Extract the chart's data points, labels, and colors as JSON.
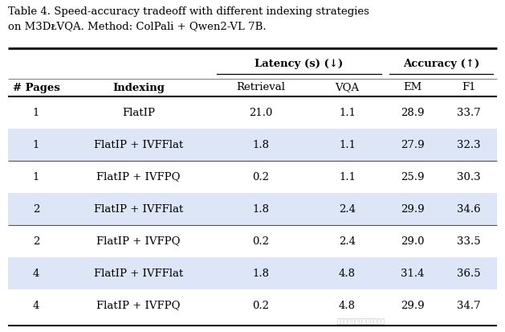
{
  "title_line1": "Table 4. Speed-accuracy tradeoff with different indexing strategies",
  "title_line2": "on M3DocVQA. Method: ColPali + Qwen2-VL 7B.",
  "rows": [
    {
      "pages": "1",
      "indexing": "FlatIP",
      "retrieval": "21.0",
      "vqa": "1.1",
      "em": "28.9",
      "f1": "33.7",
      "bg": "#ffffff"
    },
    {
      "pages": "1",
      "indexing": "FlatIP + IVFFlat",
      "retrieval": "1.8",
      "vqa": "1.1",
      "em": "27.9",
      "f1": "32.3",
      "bg": "#dce6f7"
    },
    {
      "pages": "1",
      "indexing": "FlatIP + IVFPQ",
      "retrieval": "0.2",
      "vqa": "1.1",
      "em": "25.9",
      "f1": "30.3",
      "bg": "#ffffff"
    },
    {
      "pages": "2",
      "indexing": "FlatIP + IVFFlat",
      "retrieval": "1.8",
      "vqa": "2.4",
      "em": "29.9",
      "f1": "34.6",
      "bg": "#dce6f7"
    },
    {
      "pages": "2",
      "indexing": "FlatIP + IVFPQ",
      "retrieval": "0.2",
      "vqa": "2.4",
      "em": "29.0",
      "f1": "33.5",
      "bg": "#ffffff"
    },
    {
      "pages": "4",
      "indexing": "FlatIP + IVFFlat",
      "retrieval": "1.8",
      "vqa": "4.8",
      "em": "31.4",
      "f1": "36.5",
      "bg": "#dce6f7"
    },
    {
      "pages": "4",
      "indexing": "FlatIP + IVFPQ",
      "retrieval": "0.2",
      "vqa": "4.8",
      "em": "29.9",
      "f1": "34.7",
      "bg": "#ffffff"
    }
  ],
  "group_separators_after": [
    2,
    4
  ],
  "watermark": "公众号：大语言模型论文跟踪"
}
